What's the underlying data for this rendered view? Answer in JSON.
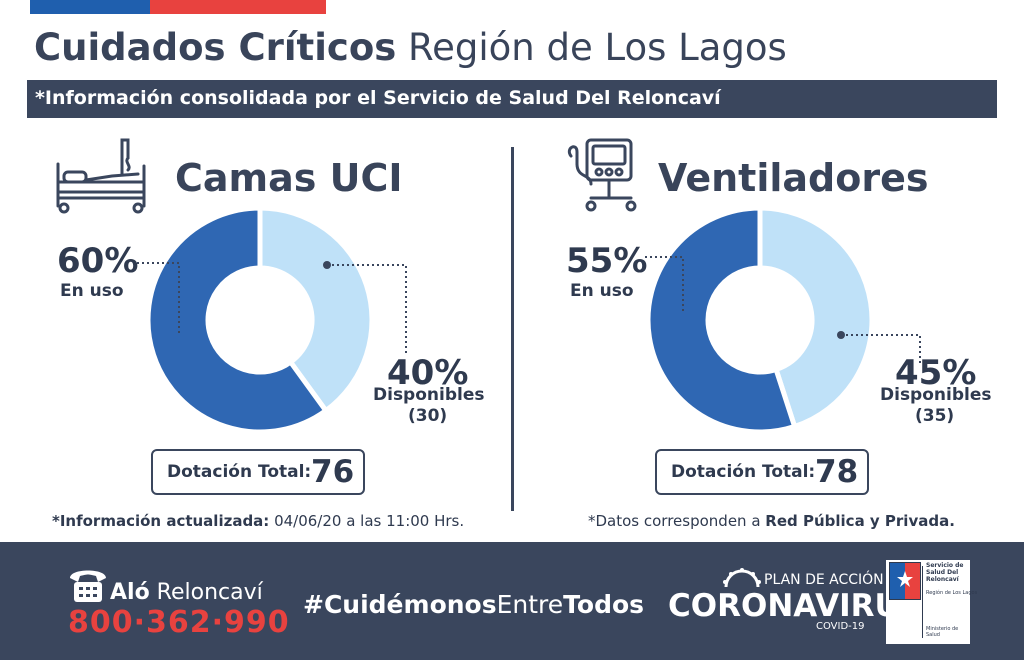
{
  "header": {
    "title_bold": "Cuidados Críticos",
    "title_light": "Región de Los Lagos",
    "subtitle": "*Información consolidada por el Servicio de Salud Del Reloncaví"
  },
  "colors": {
    "dark_blue": "#2f67b3",
    "light_blue": "#bfe1f8",
    "navy": "#3a465d",
    "red": "#e8423f"
  },
  "icons": {
    "left": "hospital-bed-icon",
    "right": "ventilator-icon"
  },
  "chart_data": [
    {
      "type": "pie",
      "title": "Camas UCI",
      "slices": [
        {
          "label": "En uso",
          "percent_label": "60%",
          "value": 60
        },
        {
          "label": "Disponibles",
          "percent_label": "40%",
          "value": 40,
          "count": "(30)"
        }
      ],
      "total_label": "Dotación Total:",
      "total_value": "76"
    },
    {
      "type": "pie",
      "title": "Ventiladores",
      "slices": [
        {
          "label": "En uso",
          "percent_label": "55%",
          "value": 55
        },
        {
          "label": "Disponibles",
          "percent_label": "45%",
          "value": 45,
          "count": "(35)"
        }
      ],
      "total_label": "Dotación Total:",
      "total_value": "78"
    }
  ],
  "notes": {
    "left_bold": "*Información actualizada:",
    "left_rest": " 04/06/20 a las 11:00 Hrs.",
    "right_plain": "*Datos corresponden a ",
    "right_bold": "Red Pública y Privada."
  },
  "footer": {
    "alo_bold": "Aló",
    "alo_light": " Reloncaví",
    "phone": "800·362·990",
    "hashtag_a": "#Cuidémonos",
    "hashtag_b": "Entre",
    "hashtag_c": "Todos",
    "plan": "PLAN DE ACCIÓN",
    "coronavirus": "CORONAVIRUS",
    "covid": "COVID-19",
    "ministry_service": "Servicio de\nSalud Del\nReloncaví",
    "ministry_region": "Región de Los Lagos",
    "ministry_name": "Ministerio de\nSalud"
  }
}
